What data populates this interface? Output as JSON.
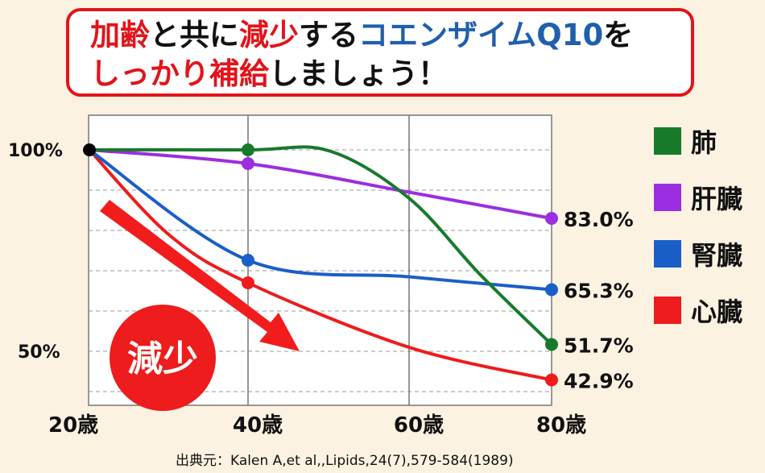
{
  "title": {
    "l1": [
      {
        "t": "加齢",
        "c": "r"
      },
      {
        "t": "と共に",
        "c": ""
      },
      {
        "t": "減少",
        "c": "r"
      },
      {
        "t": "する",
        "c": ""
      },
      {
        "t": "コエンザイムQ10",
        "c": "b"
      },
      {
        "t": "を",
        "c": ""
      }
    ],
    "l2": [
      {
        "t": "しっかり補給",
        "c": "r"
      },
      {
        "t": "しましょう！",
        "c": ""
      }
    ]
  },
  "chart_data": {
    "type": "line",
    "title": "加齢と共に減少するコエンザイムQ10をしっかり補給しましょう！",
    "x_ticks": [
      "20歳",
      "40歳",
      "60歳",
      "80歳"
    ],
    "x": [
      20,
      40,
      60,
      80
    ],
    "y_ticks": [
      "100%",
      "50%"
    ],
    "ylim": [
      36.6,
      108.6
    ],
    "grid": true,
    "series": [
      {
        "name": "肺",
        "color": "#177a2b",
        "points": [
          [
            20,
            100
          ],
          [
            40,
            100
          ],
          [
            50,
            99.8
          ],
          [
            60,
            88
          ],
          [
            70,
            69
          ],
          [
            80,
            51.7
          ]
        ],
        "markers": [
          40,
          80
        ],
        "end_label": "51.7%"
      },
      {
        "name": "肝臓",
        "color": "#9b2ee0",
        "points": [
          [
            20,
            100
          ],
          [
            40,
            96.6
          ],
          [
            60,
            89.5
          ],
          [
            80,
            83.0
          ]
        ],
        "markers": [
          40,
          80
        ],
        "end_label": "83.0%"
      },
      {
        "name": "腎臓",
        "color": "#1a5fc8",
        "points": [
          [
            20,
            100
          ],
          [
            40,
            72.6
          ],
          [
            60,
            68.5
          ],
          [
            80,
            65.3
          ]
        ],
        "markers": [
          40,
          80
        ],
        "end_label": "65.3%"
      },
      {
        "name": "心臓",
        "color": "#ee1c1c",
        "points": [
          [
            20,
            100
          ],
          [
            30,
            79
          ],
          [
            40,
            67
          ],
          [
            60,
            51
          ],
          [
            80,
            42.9
          ]
        ],
        "markers": [
          40,
          80
        ],
        "end_label": "42.9%"
      }
    ],
    "legend": "right",
    "annotation": "減少"
  },
  "footnote": "出典元：Kalen A,et al,,Lipids,24(7),579-584(1989)"
}
